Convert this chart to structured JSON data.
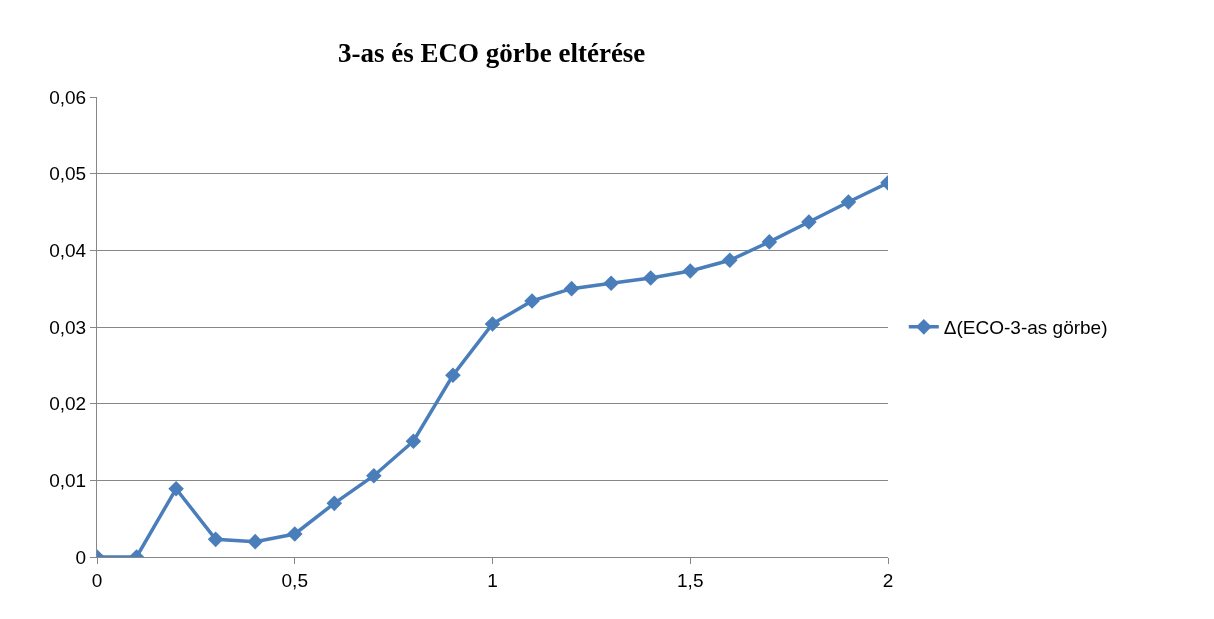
{
  "chart_data": {
    "type": "line",
    "title": "3-as és ECO görbe eltérése",
    "x": [
      0,
      0.1,
      0.2,
      0.3,
      0.4,
      0.5,
      0.6,
      0.7,
      0.8,
      0.9,
      1,
      1.1,
      1.2,
      1.3,
      1.4,
      1.5,
      1.6,
      1.7,
      1.8,
      1.9,
      2
    ],
    "series": [
      {
        "name": "Δ(ECO-3-as görbe)",
        "color": "#4a7ebb",
        "values": [
          0,
          0,
          0.0089,
          0.0023,
          0.002,
          0.003,
          0.007,
          0.0106,
          0.0151,
          0.0237,
          0.0304,
          0.0334,
          0.035,
          0.0357,
          0.0364,
          0.0373,
          0.0387,
          0.0411,
          0.0437,
          0.0463,
          0.0488
        ]
      }
    ],
    "xlim": [
      0,
      2
    ],
    "xticks": [
      0,
      {
        "value": 0.5,
        "label": "0,5"
      },
      1,
      {
        "value": 1.5,
        "label": "1,5"
      },
      2
    ],
    "ylim": [
      0,
      0.06
    ],
    "yticks": [
      0,
      {
        "value": 0.01,
        "label": "0,01"
      },
      {
        "value": 0.02,
        "label": "0,02"
      },
      {
        "value": 0.03,
        "label": "0,03"
      },
      {
        "value": 0.04,
        "label": "0,04"
      },
      {
        "value": 0.05,
        "label": "0,05"
      },
      {
        "value": 0.06,
        "label": "0,06"
      }
    ],
    "grid": "y",
    "legend": "right",
    "marker": "diamond",
    "line_style": "solid"
  }
}
